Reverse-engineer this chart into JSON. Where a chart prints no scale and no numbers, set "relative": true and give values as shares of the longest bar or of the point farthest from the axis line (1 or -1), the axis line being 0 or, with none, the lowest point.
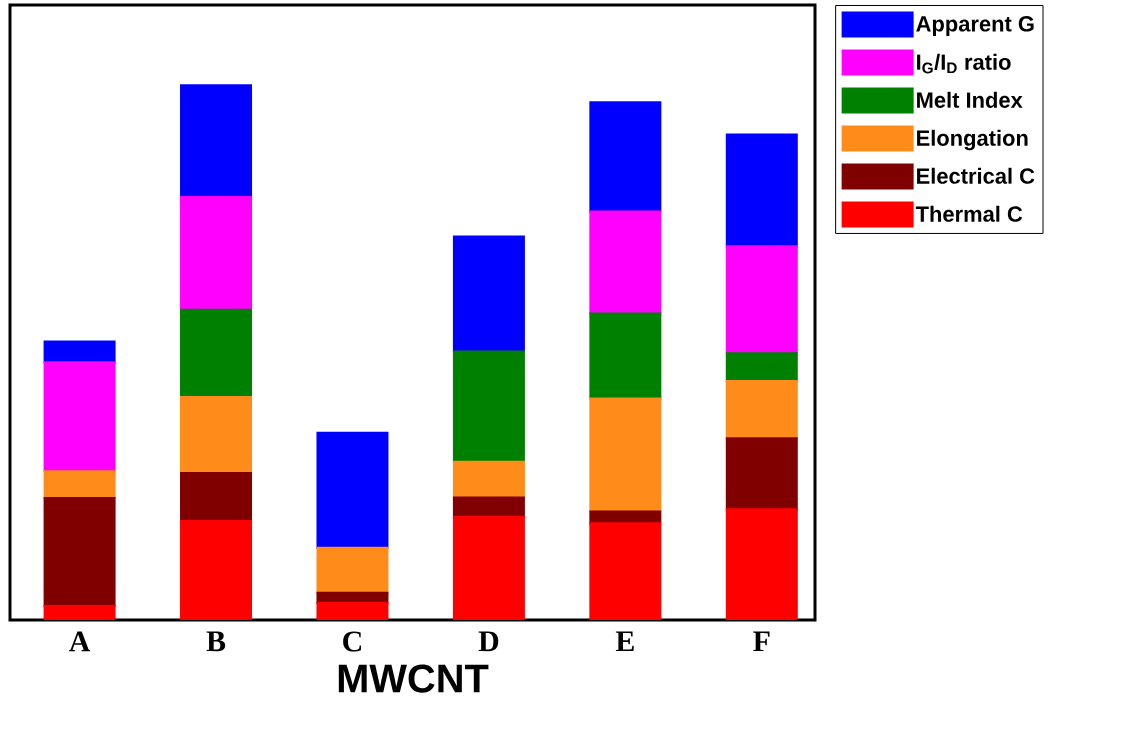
{
  "chart_data": {
    "type": "bar",
    "stacked": true,
    "relative": true,
    "xlabel": "MWCNT",
    "legend": "top right",
    "categories": [
      "A",
      "B",
      "C",
      "D",
      "E",
      "F"
    ],
    "series": [
      {
        "name": "Thermal C",
        "color": "#ff0000",
        "values": [
          0.026,
          0.185,
          0.032,
          0.193,
          0.181,
          0.207
        ]
      },
      {
        "name": "Electrical C",
        "color": "#800000",
        "values": [
          0.202,
          0.09,
          0.019,
          0.036,
          0.022,
          0.133
        ]
      },
      {
        "name": "Elongation",
        "color": "#ff8c1a",
        "values": [
          0.05,
          0.142,
          0.084,
          0.067,
          0.211,
          0.107
        ]
      },
      {
        "name": "Melt Index",
        "color": "#008000",
        "values": [
          0,
          0.163,
          0,
          0.206,
          0.159,
          0.052
        ]
      },
      {
        "name": "I$_{G}$/I$_{D}$ ratio",
        "color": "#ff00ff",
        "values": [
          0.204,
          0.211,
          0,
          0,
          0.191,
          0.2
        ]
      },
      {
        "name": "Apparent G",
        "color": "#0000ff",
        "values": [
          0.039,
          0.209,
          0.215,
          0.215,
          0.204,
          0.209
        ]
      }
    ]
  }
}
